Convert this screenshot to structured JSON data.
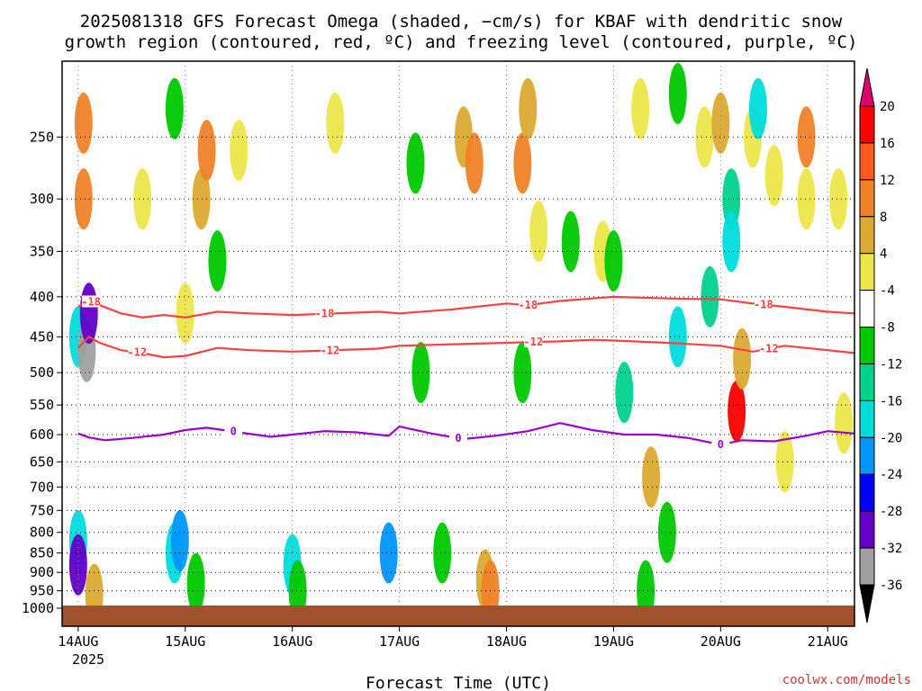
{
  "chart_data": {
    "type": "heatmap",
    "title_line1": "2025081318 GFS Forecast Omega (shaded, −cm/s) for KBAF with dendritic snow",
    "title_line2": "growth region (contoured, red, ºC) and freezing level (contoured, purple, ºC)",
    "xlabel": "Forecast Time (UTC)",
    "credit": "coolwx.com/models",
    "x_ticks": [
      "14AUG",
      "15AUG",
      "16AUG",
      "17AUG",
      "18AUG",
      "19AUG",
      "20AUG",
      "21AUG"
    ],
    "x_year": "2025",
    "x_range_days": [
      -0.15,
      7.25
    ],
    "y_ticks": [
      250,
      300,
      350,
      400,
      450,
      500,
      550,
      600,
      650,
      700,
      750,
      800,
      850,
      900,
      950,
      1000
    ],
    "y_range_hpa": [
      200,
      1000
    ],
    "y_scale": "log-pressure",
    "grid": true,
    "colorbar": {
      "labels": [
        "20",
        "16",
        "12",
        "8",
        "4",
        "-4",
        "-8",
        "-12",
        "-16",
        "-20",
        "-24",
        "-28",
        "-32",
        "-36"
      ],
      "colors": [
        "#ff0000",
        "#ff5a1e",
        "#f08228",
        "#dcaa32",
        "#ece64a",
        "#ffffff",
        "#00c800",
        "#00d28c",
        "#00dcdc",
        "#0096ff",
        "#0000ff",
        "#6400c8",
        "#a000c8",
        "#a0a0a0"
      ],
      "top_arrow_color": "#e0006e",
      "bottom_arrow_color": "#000000"
    },
    "contours": [
      {
        "level": "-18",
        "color": "#ff4040",
        "x": [
          0.0,
          0.1,
          0.2,
          0.4,
          0.6,
          0.8,
          1.0,
          1.3,
          1.6,
          2.0,
          2.4,
          2.8,
          3.0,
          3.5,
          4.0,
          4.2,
          4.5,
          4.8,
          5.0,
          5.5,
          6.0,
          6.3,
          6.6,
          7.0,
          7.25
        ],
        "y": [
          412,
          405,
          410,
          420,
          425,
          422,
          425,
          418,
          420,
          422,
          420,
          418,
          420,
          415,
          408,
          410,
          405,
          402,
          400,
          402,
          403,
          408,
          412,
          418,
          420
        ],
        "label_x": [
          0.12,
          2.3,
          4.2,
          6.4
        ]
      },
      {
        "level": "-12",
        "color": "#ff4040",
        "x": [
          0.0,
          0.1,
          0.2,
          0.4,
          0.6,
          0.8,
          1.0,
          1.3,
          1.6,
          2.0,
          2.4,
          2.8,
          3.0,
          3.5,
          4.0,
          4.2,
          4.5,
          4.8,
          5.0,
          5.5,
          6.0,
          6.3,
          6.6,
          7.0,
          7.25
        ],
        "y": [
          465,
          450,
          458,
          468,
          472,
          478,
          476,
          465,
          468,
          470,
          468,
          466,
          462,
          460,
          458,
          457,
          456,
          454,
          455,
          458,
          462,
          470,
          462,
          468,
          472
        ],
        "label_x": [
          0.55,
          2.35,
          4.25,
          6.45
        ]
      },
      {
        "level": "0",
        "color": "#9900cc",
        "x": [
          0.0,
          0.1,
          0.25,
          0.5,
          0.8,
          1.0,
          1.2,
          1.5,
          1.8,
          2.0,
          2.3,
          2.6,
          2.9,
          3.0,
          3.3,
          3.6,
          3.9,
          4.2,
          4.5,
          4.8,
          5.1,
          5.4,
          5.7,
          6.0,
          6.2,
          6.5,
          6.8,
          7.0,
          7.25
        ],
        "y": [
          598,
          605,
          610,
          606,
          600,
          592,
          588,
          596,
          604,
          600,
          594,
          596,
          602,
          586,
          598,
          608,
          602,
          594,
          580,
          592,
          600,
          600,
          606,
          618,
          610,
          612,
          602,
          594,
          598
        ],
        "label_x": [
          1.45,
          3.55,
          6.0
        ]
      }
    ],
    "omega_cells": [
      {
        "x": 0.05,
        "p": 240,
        "value": 12
      },
      {
        "x": 0.05,
        "p": 300,
        "value": 12
      },
      {
        "x": 0.0,
        "p": 450,
        "value": -16
      },
      {
        "x": 0.08,
        "p": 470,
        "value": -36
      },
      {
        "x": 0.1,
        "p": 420,
        "value": -28
      },
      {
        "x": 0.0,
        "p": 820,
        "value": -16
      },
      {
        "x": 0.0,
        "p": 880,
        "value": -28
      },
      {
        "x": 0.15,
        "p": 960,
        "value": 8
      },
      {
        "x": 0.9,
        "p": 230,
        "value": -8
      },
      {
        "x": 1.15,
        "p": 300,
        "value": 8
      },
      {
        "x": 1.2,
        "p": 260,
        "value": 12
      },
      {
        "x": 1.3,
        "p": 360,
        "value": -8
      },
      {
        "x": 0.6,
        "p": 300,
        "value": 4
      },
      {
        "x": 1.0,
        "p": 420,
        "value": 4
      },
      {
        "x": 0.9,
        "p": 850,
        "value": -16
      },
      {
        "x": 0.95,
        "p": 820,
        "value": -20
      },
      {
        "x": 1.1,
        "p": 930,
        "value": -8
      },
      {
        "x": 1.5,
        "p": 260,
        "value": 4
      },
      {
        "x": 2.0,
        "p": 880,
        "value": -16
      },
      {
        "x": 2.05,
        "p": 950,
        "value": -8
      },
      {
        "x": 2.4,
        "p": 240,
        "value": 4
      },
      {
        "x": 2.9,
        "p": 850,
        "value": -20
      },
      {
        "x": 3.15,
        "p": 270,
        "value": -8
      },
      {
        "x": 3.2,
        "p": 500,
        "value": -8
      },
      {
        "x": 3.4,
        "p": 850,
        "value": -8
      },
      {
        "x": 3.6,
        "p": 250,
        "value": 8
      },
      {
        "x": 3.7,
        "p": 270,
        "value": 12
      },
      {
        "x": 3.8,
        "p": 920,
        "value": 8
      },
      {
        "x": 3.85,
        "p": 950,
        "value": 12
      },
      {
        "x": 4.15,
        "p": 270,
        "value": 12
      },
      {
        "x": 4.2,
        "p": 230,
        "value": 8
      },
      {
        "x": 4.3,
        "p": 330,
        "value": 4
      },
      {
        "x": 4.15,
        "p": 500,
        "value": -8
      },
      {
        "x": 4.6,
        "p": 340,
        "value": -8
      },
      {
        "x": 4.9,
        "p": 350,
        "value": 4
      },
      {
        "x": 5.0,
        "p": 360,
        "value": -8
      },
      {
        "x": 5.1,
        "p": 530,
        "value": -12
      },
      {
        "x": 5.25,
        "p": 230,
        "value": 4
      },
      {
        "x": 5.35,
        "p": 680,
        "value": 8
      },
      {
        "x": 5.5,
        "p": 800,
        "value": -8
      },
      {
        "x": 5.6,
        "p": 220,
        "value": -8
      },
      {
        "x": 5.6,
        "p": 450,
        "value": -16
      },
      {
        "x": 5.85,
        "p": 250,
        "value": 4
      },
      {
        "x": 5.9,
        "p": 400,
        "value": -12
      },
      {
        "x": 6.0,
        "p": 240,
        "value": 8
      },
      {
        "x": 6.1,
        "p": 300,
        "value": -12
      },
      {
        "x": 6.1,
        "p": 340,
        "value": -16
      },
      {
        "x": 6.15,
        "p": 560,
        "value": 20
      },
      {
        "x": 6.2,
        "p": 480,
        "value": 8
      },
      {
        "x": 6.3,
        "p": 250,
        "value": 4
      },
      {
        "x": 6.35,
        "p": 230,
        "value": -16
      },
      {
        "x": 6.5,
        "p": 280,
        "value": 4
      },
      {
        "x": 6.8,
        "p": 300,
        "value": 4
      },
      {
        "x": 6.8,
        "p": 250,
        "value": 12
      },
      {
        "x": 7.1,
        "p": 300,
        "value": 4
      },
      {
        "x": 7.15,
        "p": 580,
        "value": 4
      },
      {
        "x": 6.6,
        "p": 650,
        "value": 4
      },
      {
        "x": 5.3,
        "p": 950,
        "value": -8
      }
    ],
    "surface_color": "#a0522d"
  }
}
